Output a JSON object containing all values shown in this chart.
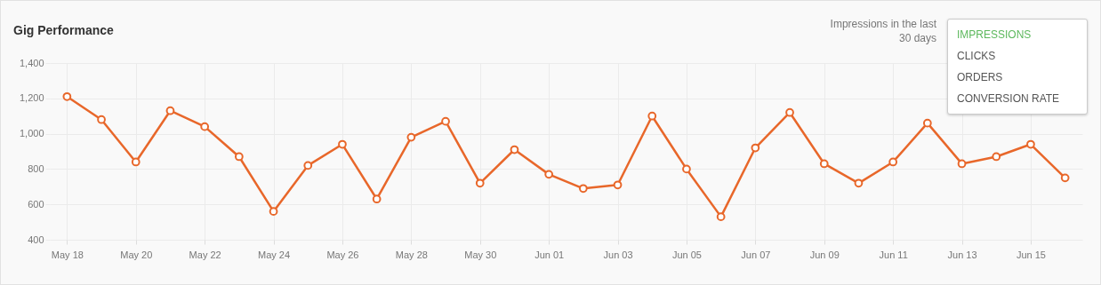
{
  "chart_data": {
    "type": "line",
    "title": "Gig Performance",
    "annotations": [
      "Impressions in the last 30 days",
      "IMPRESSIONS",
      "CLICKS",
      "ORDERS",
      "CONVERSION RATE"
    ],
    "categories": [
      "May 18",
      null,
      "May 20",
      null,
      "May 22",
      null,
      "May 24",
      null,
      "May 26",
      null,
      "May 28",
      null,
      "May 30",
      null,
      "Jun 01",
      null,
      "Jun 03",
      null,
      "Jun 05",
      null,
      "Jun 07",
      null,
      "Jun 09",
      null,
      "Jun 11",
      null,
      "Jun 13",
      null,
      "Jun 15",
      null
    ],
    "series": [
      {
        "color": "#e8672a",
        "values": [
          1210,
          1080,
          840,
          1130,
          1040,
          870,
          560,
          820,
          940,
          630,
          980,
          1070,
          720,
          910,
          770,
          690,
          710,
          1100,
          800,
          530,
          920,
          1120,
          830,
          720,
          840,
          1060,
          830,
          870,
          940,
          750
        ]
      }
    ],
    "ylim": [
      400,
      1400
    ],
    "yticks": [
      400,
      600,
      800,
      {
        "value": 1000,
        "label": "1,000"
      },
      {
        "value": 1200,
        "label": "1,200"
      },
      {
        "value": 1400,
        "label": "1,400"
      }
    ],
    "grid": true,
    "marker": "circle",
    "line_style": "solid",
    "legend": false
  }
}
